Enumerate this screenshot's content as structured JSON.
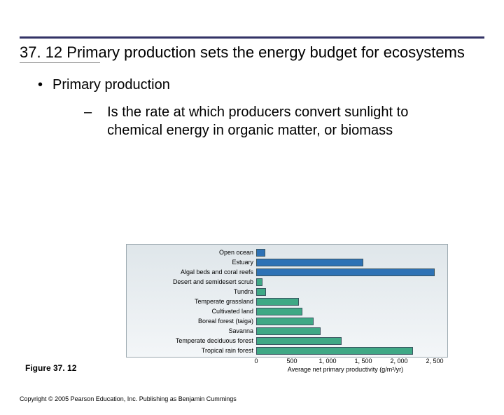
{
  "title": "37. 12 Primary production sets the energy budget for ecosystems",
  "bullet_l1": "Primary production",
  "bullet_l2": "Is the rate at which producers convert sunlight to chemical energy in organic matter, or biomass",
  "figure_label": "Figure 37. 12",
  "copyright": "Copyright © 2005 Pearson Education, Inc. Publishing as Benjamin Cummings",
  "chart": {
    "type": "bar-horizontal",
    "x_max": 2500,
    "axis_title": "Average net primary productivity (g/m²/yr)",
    "ticks": [
      {
        "v": 0,
        "label": "0"
      },
      {
        "v": 500,
        "label": "500"
      },
      {
        "v": 1000,
        "label": "1, 000"
      },
      {
        "v": 1500,
        "label": "1, 500"
      },
      {
        "v": 2000,
        "label": "2, 000"
      },
      {
        "v": 2500,
        "label": "2, 500"
      }
    ],
    "colors": {
      "aquatic": "#2e72b5",
      "terrestrial": "#3fa885",
      "bar_border": "#3a5560",
      "plot_bg_top": "#dfe6ea",
      "plot_bg_bottom": "#f3f6f8",
      "plot_border": "#9ca9b0"
    },
    "rows": [
      {
        "label": "Open ocean",
        "value": 125,
        "group": "aquatic"
      },
      {
        "label": "Estuary",
        "value": 1500,
        "group": "aquatic"
      },
      {
        "label": "Algal beds and coral reefs",
        "value": 2500,
        "group": "aquatic"
      },
      {
        "label": "Desert and semidesert scrub",
        "value": 90,
        "group": "terrestrial"
      },
      {
        "label": "Tundra",
        "value": 140,
        "group": "terrestrial"
      },
      {
        "label": "Temperate grassland",
        "value": 600,
        "group": "terrestrial"
      },
      {
        "label": "Cultivated land",
        "value": 650,
        "group": "terrestrial"
      },
      {
        "label": "Boreal forest (taiga)",
        "value": 800,
        "group": "terrestrial"
      },
      {
        "label": "Savanna",
        "value": 900,
        "group": "terrestrial"
      },
      {
        "label": "Temperate deciduous forest",
        "value": 1200,
        "group": "terrestrial"
      },
      {
        "label": "Tropical rain forest",
        "value": 2200,
        "group": "terrestrial"
      }
    ]
  }
}
